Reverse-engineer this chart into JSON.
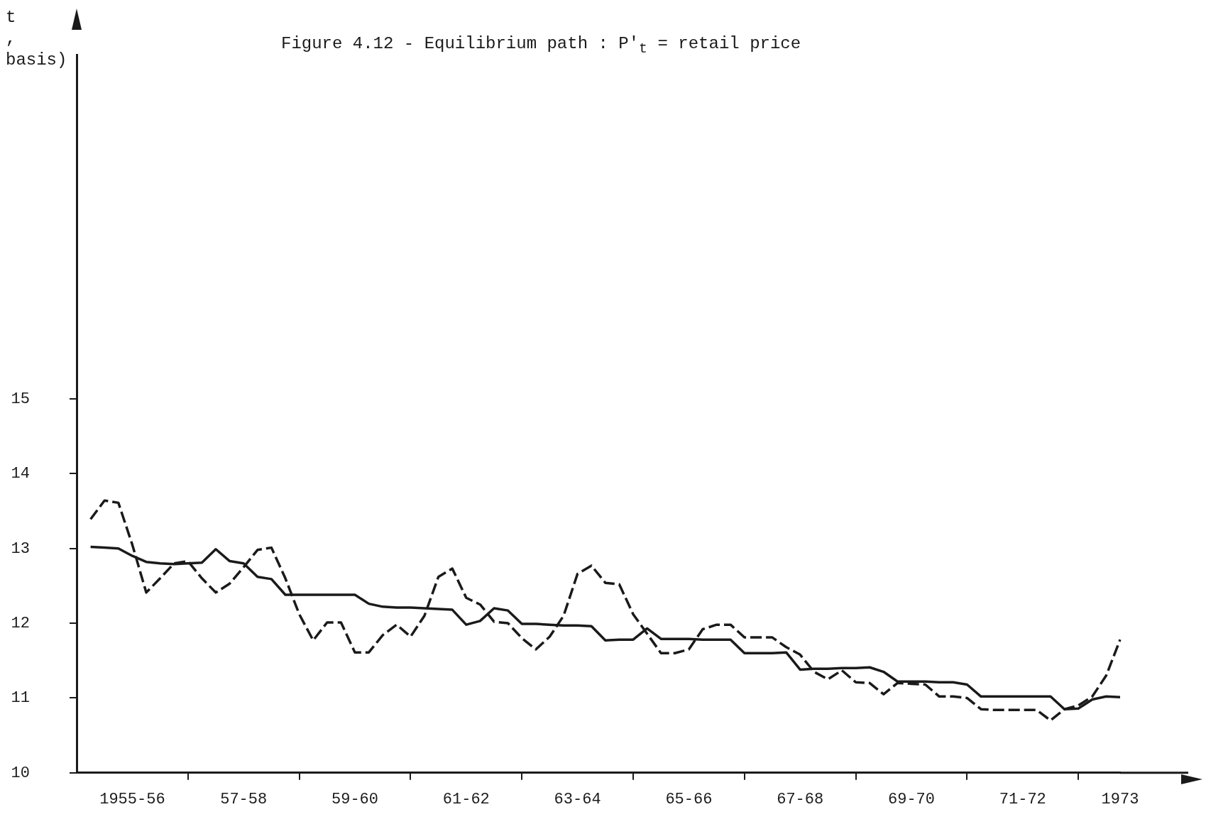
{
  "chart_data": {
    "type": "line",
    "title": "Figure 4.12 - Equilibrium path : P′$_{t}$ = retail price",
    "ylabel": "t\n,\nbasis)",
    "categories": [
      null,
      null,
      null,
      null,
      "1955-56",
      null,
      null,
      null,
      null,
      null,
      null,
      null,
      "57-58",
      null,
      null,
      null,
      null,
      null,
      null,
      null,
      "59-60",
      null,
      null,
      null,
      null,
      null,
      null,
      null,
      "61-62",
      null,
      null,
      null,
      null,
      null,
      null,
      null,
      "63-64",
      null,
      null,
      null,
      null,
      null,
      null,
      null,
      "65-66",
      null,
      null,
      null,
      null,
      null,
      null,
      null,
      "67-68",
      null,
      null,
      null,
      null,
      null,
      null,
      null,
      "69-70",
      null,
      null,
      null,
      null,
      null,
      null,
      null,
      "71-72",
      null,
      null,
      null,
      null,
      null,
      null,
      "1973"
    ],
    "ylim": [
      10,
      19.6
    ],
    "yticks": [
      10,
      11,
      12,
      13,
      14,
      15
    ],
    "grid": false,
    "legend": false,
    "marker": "none",
    "series": [
      {
        "color": "#1a1a1a",
        "line_style": "solid",
        "values": [
          null,
          13.02,
          13.01,
          13.0,
          12.9,
          12.82,
          12.8,
          12.79,
          12.8,
          12.81,
          12.99,
          12.83,
          12.8,
          12.62,
          12.59,
          12.38,
          12.38,
          12.38,
          12.38,
          12.38,
          12.38,
          12.26,
          12.22,
          12.21,
          12.21,
          12.2,
          12.19,
          12.18,
          11.98,
          12.03,
          12.2,
          12.17,
          11.99,
          11.99,
          11.98,
          11.97,
          11.97,
          11.96,
          11.77,
          11.78,
          11.78,
          11.93,
          11.79,
          11.79,
          11.79,
          11.78,
          11.78,
          11.78,
          11.6,
          11.6,
          11.6,
          11.61,
          11.38,
          11.39,
          11.39,
          11.4,
          11.4,
          11.41,
          11.35,
          11.22,
          11.22,
          11.22,
          11.21,
          11.21,
          11.18,
          11.02,
          11.02,
          11.02,
          11.02,
          11.02,
          11.02,
          10.85,
          10.86,
          10.98,
          11.02,
          11.01
        ]
      },
      {
        "color": "#1a1a1a",
        "line_style": "dashed",
        "values": [
          null,
          13.39,
          13.64,
          13.61,
          13.05,
          12.41,
          12.6,
          12.8,
          12.83,
          12.6,
          12.41,
          12.53,
          12.75,
          12.98,
          13.01,
          12.6,
          12.12,
          11.77,
          12.01,
          12.01,
          11.61,
          11.61,
          11.84,
          11.98,
          11.82,
          12.1,
          12.62,
          12.73,
          12.34,
          12.25,
          12.02,
          12.0,
          11.8,
          11.65,
          11.82,
          12.1,
          12.66,
          12.77,
          12.54,
          12.52,
          12.12,
          11.86,
          11.6,
          11.6,
          11.65,
          11.92,
          11.98,
          11.98,
          11.81,
          11.81,
          11.81,
          11.68,
          11.58,
          11.35,
          11.25,
          11.37,
          11.21,
          11.2,
          11.05,
          11.2,
          11.19,
          11.18,
          11.02,
          11.02,
          11.0,
          10.85,
          10.84,
          10.84,
          10.84,
          10.84,
          10.7,
          10.85,
          10.9,
          11.02,
          11.3,
          11.78
        ]
      }
    ]
  }
}
